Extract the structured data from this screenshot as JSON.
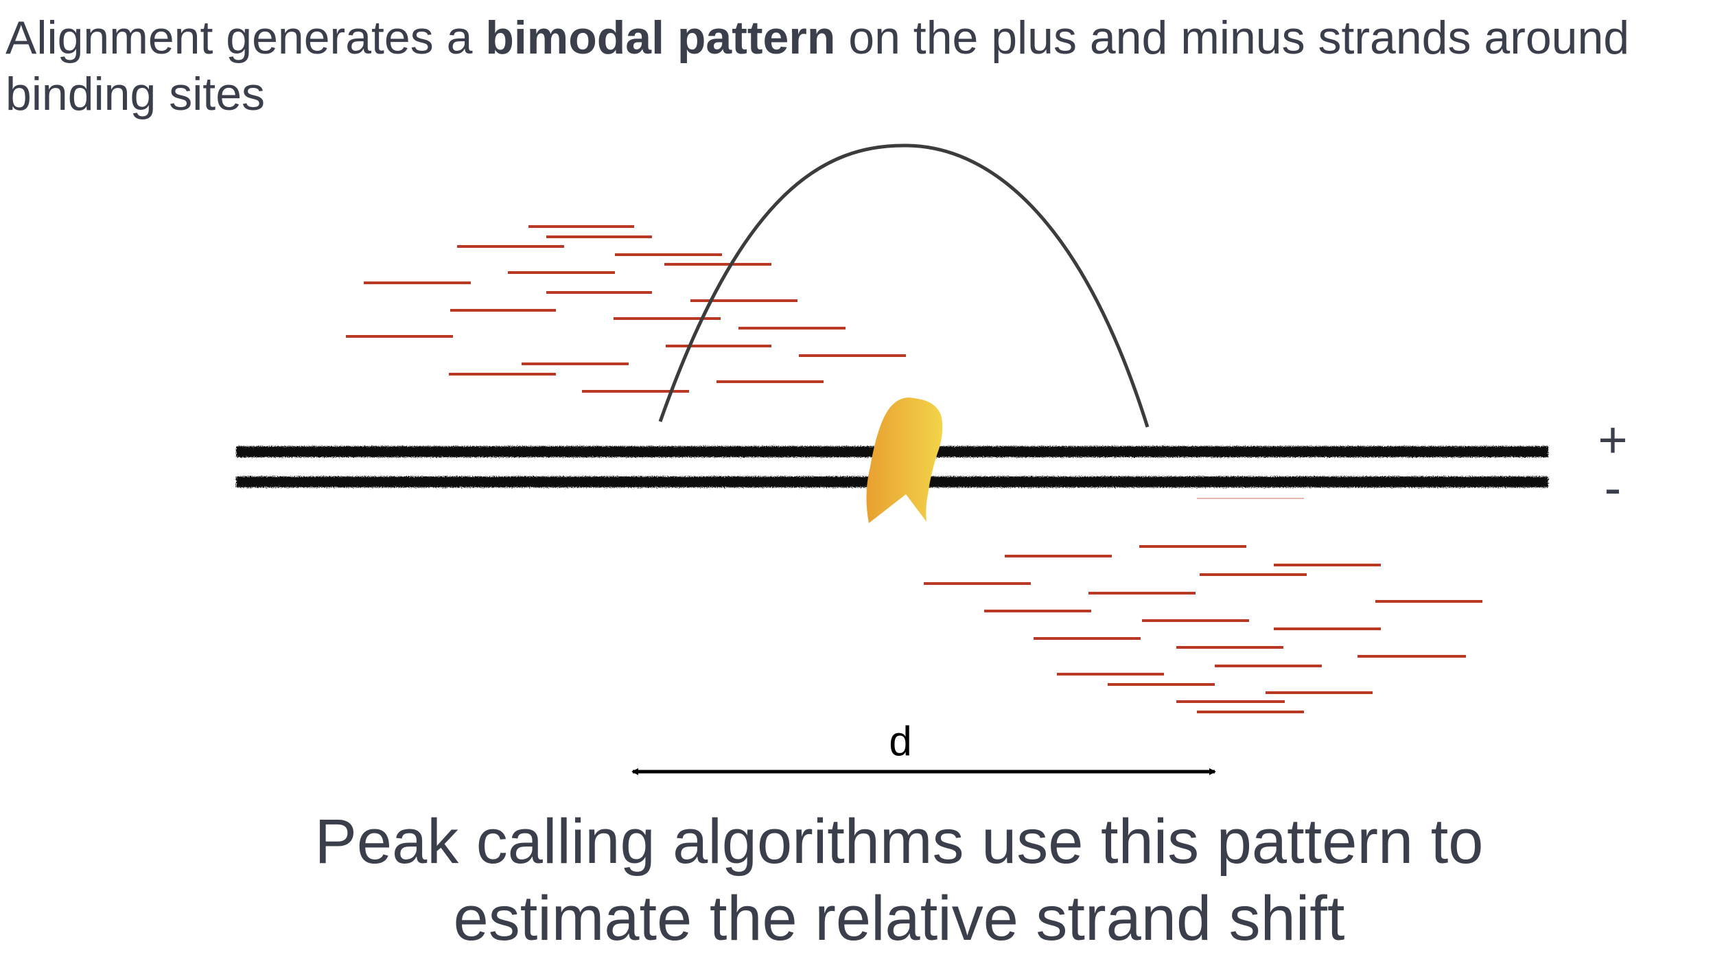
{
  "heading": {
    "part1": "Alignment generates a ",
    "bold": "bimodal pattern",
    "part2": " on the plus and minus strands around binding sites"
  },
  "strand_labels": {
    "plus": "+",
    "minus": "-"
  },
  "distance_label": "d",
  "caption": {
    "line1": "Peak calling algorithms use this pattern to",
    "line2": "estimate the relative strand shift"
  },
  "colors": {
    "read": "#b83a24",
    "curve": "#3c3c3c",
    "dna": "#111111",
    "protein_light": "#f2d44a",
    "protein_dark": "#e8a030",
    "text": "#3a3f4b"
  }
}
